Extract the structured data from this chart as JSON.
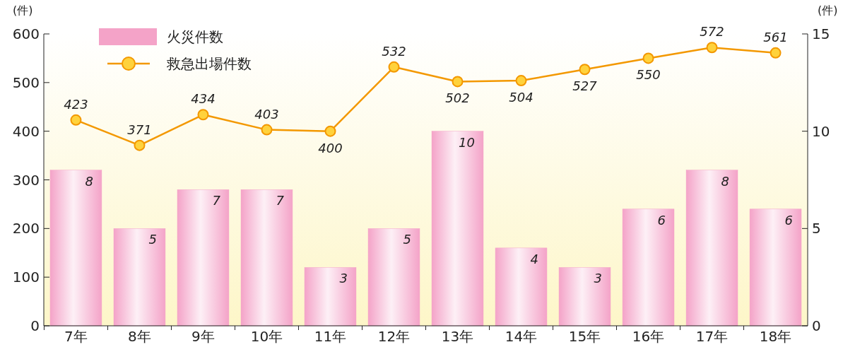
{
  "chart_data": {
    "type": "bar",
    "categories": [
      "7年",
      "8年",
      "9年",
      "10年",
      "11年",
      "12年",
      "13年",
      "14年",
      "15年",
      "16年",
      "17年",
      "18年"
    ],
    "ylabel": "(件)",
    "y2label": "(件)",
    "ylim": [
      0,
      600
    ],
    "yticks": [
      0,
      100,
      200,
      300,
      400,
      500,
      600
    ],
    "y2lim": [
      0,
      15
    ],
    "y2ticks": [
      0,
      5,
      10,
      15
    ],
    "series": [
      {
        "name": "火災件数",
        "axis": "y2",
        "color": "#f4a3c8",
        "values": [
          8,
          5,
          7,
          7,
          3,
          5,
          10,
          4,
          3,
          6,
          8,
          6
        ]
      },
      {
        "name": "救急出場件数",
        "type": "line",
        "color": "#f39800",
        "marker": "circle",
        "values": [
          423,
          371,
          434,
          403,
          400,
          532,
          502,
          504,
          527,
          550,
          572,
          561
        ]
      }
    ],
    "data_labels": true,
    "legend": "top left",
    "grid": false
  }
}
